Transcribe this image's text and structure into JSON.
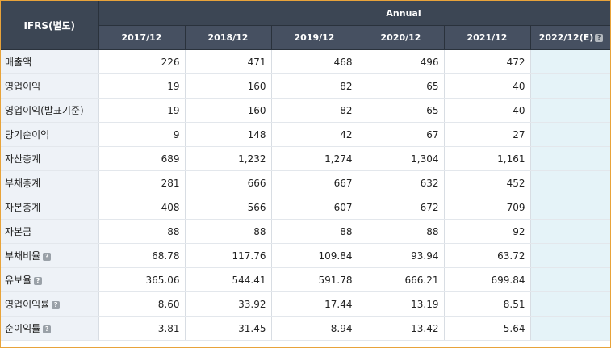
{
  "table": {
    "corner_label": "IFRS(별도)",
    "group_label": "Annual",
    "help_icon": "question-icon",
    "help_glyph": "?",
    "years": [
      "2017/12",
      "2018/12",
      "2019/12",
      "2020/12",
      "2021/12",
      "2022/12(E)"
    ],
    "rows": [
      {
        "label": "매출액",
        "values": [
          "226",
          "471",
          "468",
          "496",
          "472",
          ""
        ]
      },
      {
        "label": "영업이익",
        "values": [
          "19",
          "160",
          "82",
          "65",
          "40",
          ""
        ]
      },
      {
        "label": "영업이익(발표기준)",
        "values": [
          "19",
          "160",
          "82",
          "65",
          "40",
          ""
        ]
      },
      {
        "label": "당기순이익",
        "values": [
          "9",
          "148",
          "42",
          "67",
          "27",
          ""
        ]
      },
      {
        "label": "자산총계",
        "values": [
          "689",
          "1,232",
          "1,274",
          "1,304",
          "1,161",
          ""
        ]
      },
      {
        "label": "부채총계",
        "values": [
          "281",
          "666",
          "667",
          "632",
          "452",
          ""
        ]
      },
      {
        "label": "자본총계",
        "values": [
          "408",
          "566",
          "607",
          "672",
          "709",
          ""
        ]
      },
      {
        "label": "자본금",
        "values": [
          "88",
          "88",
          "88",
          "88",
          "92",
          ""
        ]
      },
      {
        "label": "부채비율",
        "values": [
          "68.78",
          "117.76",
          "109.84",
          "93.94",
          "63.72",
          ""
        ]
      },
      {
        "label": "유보율",
        "values": [
          "365.06",
          "544.41",
          "591.78",
          "666.21",
          "699.84",
          ""
        ]
      },
      {
        "label": "영업이익률",
        "values": [
          "8.60",
          "33.92",
          "17.44",
          "13.19",
          "8.51",
          ""
        ]
      },
      {
        "label": "순이익률",
        "values": [
          "3.81",
          "31.45",
          "8.94",
          "13.42",
          "5.64",
          ""
        ]
      }
    ]
  }
}
